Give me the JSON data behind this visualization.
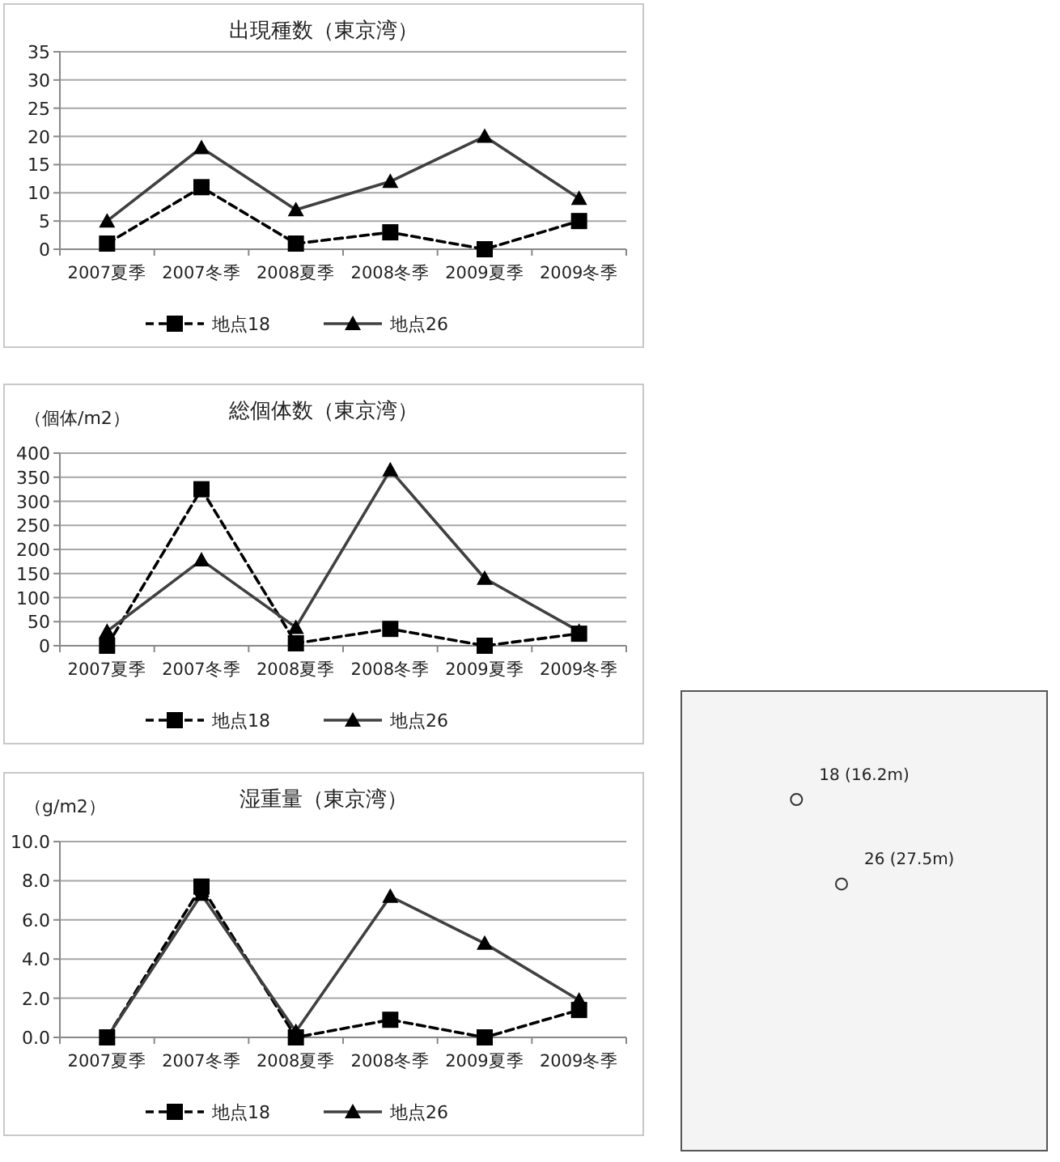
{
  "chart_data": [
    {
      "type": "line",
      "title": "出現種数（東京湾）",
      "categories": [
        "2007夏季",
        "2007冬季",
        "2008夏季",
        "2008冬季",
        "2009夏季",
        "2009冬季"
      ],
      "series": [
        {
          "name": "地点18",
          "color": "#000000",
          "marker": "square",
          "line_style": "dashed",
          "values": [
            1,
            11,
            1,
            3,
            0,
            5
          ]
        },
        {
          "name": "地点26",
          "color": "#404040",
          "marker": "triangle",
          "line_style": "solid",
          "values": [
            5,
            18,
            7,
            12,
            20,
            9
          ]
        }
      ],
      "ylim": [
        0,
        35
      ],
      "yticks": [
        0,
        5,
        10,
        15,
        20,
        25,
        30,
        35
      ],
      "grid": "y",
      "legend": "bottom"
    },
    {
      "type": "line",
      "title": "総個体数（東京湾）",
      "ylabel": "（個体/m2）",
      "categories": [
        "2007夏季",
        "2007冬季",
        "2008夏季",
        "2008冬季",
        "2009夏季",
        "2009冬季"
      ],
      "series": [
        {
          "name": "地点18",
          "color": "#000000",
          "marker": "square",
          "line_style": "dashed",
          "values": [
            0,
            325,
            5,
            35,
            0,
            25
          ]
        },
        {
          "name": "地点26",
          "color": "#404040",
          "marker": "triangle",
          "line_style": "solid",
          "values": [
            30,
            178,
            38,
            365,
            140,
            30
          ]
        }
      ],
      "ylim": [
        0,
        400
      ],
      "yticks": [
        0,
        50,
        100,
        150,
        200,
        250,
        300,
        350,
        400
      ],
      "grid": "y",
      "legend": "bottom"
    },
    {
      "type": "line",
      "title": "湿重量（東京湾）",
      "ylabel": "（g/m2）",
      "categories": [
        "2007夏季",
        "2007冬季",
        "2008夏季",
        "2008冬季",
        "2009夏季",
        "2009冬季"
      ],
      "series": [
        {
          "name": "地点18",
          "color": "#000000",
          "marker": "square",
          "line_style": "dashed",
          "values": [
            0,
            7.7,
            0,
            0.9,
            0,
            1.4
          ]
        },
        {
          "name": "地点26",
          "color": "#404040",
          "marker": "triangle",
          "line_style": "solid",
          "values": [
            0,
            7.3,
            0.3,
            7.2,
            4.8,
            1.9
          ]
        }
      ],
      "ylim": [
        0,
        10
      ],
      "yticks": [
        {
          "value": 0,
          "label": "0.0"
        },
        {
          "value": 2,
          "label": "2.0"
        },
        {
          "value": 4,
          "label": "4.0"
        },
        {
          "value": 6,
          "label": "6.0"
        },
        {
          "value": 8,
          "label": "8.0"
        },
        {
          "value": 10,
          "label": "10.0"
        }
      ],
      "grid": "y",
      "legend": "bottom"
    },
    {
      "type": "other",
      "annotations": [
        "18 (16.2m)",
        "26 (27.5m)"
      ]
    }
  ]
}
